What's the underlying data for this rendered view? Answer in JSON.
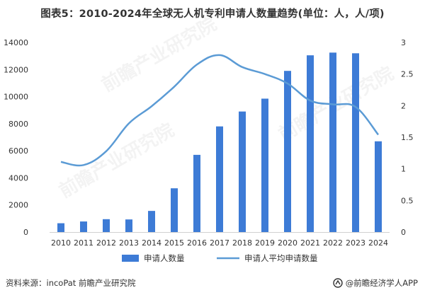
{
  "title": "图表5：2010-2024年全球无人机专利申请人数量趋势(单位：人，人/项)",
  "source": "资料来源：incoPat 前瞻产业研究院",
  "credit": "@前瞻经济学人APP",
  "watermark": "前瞻产业研究院",
  "colors": {
    "bar": "#3d7bd6",
    "line": "#5b9bd5"
  },
  "chart_data": {
    "type": "bar",
    "categories": [
      "2010",
      "2011",
      "2012",
      "2013",
      "2014",
      "2015",
      "2016",
      "2017",
      "2018",
      "2019",
      "2020",
      "2021",
      "2022",
      "2023",
      "2024"
    ],
    "series": [
      {
        "name": "申请人数量",
        "type": "bar",
        "axis": "left",
        "values": [
          650,
          780,
          950,
          930,
          1560,
          3230,
          5700,
          7800,
          8900,
          9850,
          11900,
          13050,
          13250,
          13200,
          6700
        ]
      },
      {
        "name": "申请人平均申请数量",
        "type": "line",
        "axis": "right",
        "values": [
          1.11,
          1.06,
          1.28,
          1.72,
          1.99,
          2.3,
          2.65,
          2.8,
          2.61,
          2.5,
          2.35,
          2.08,
          2.02,
          1.98,
          1.54
        ]
      }
    ],
    "y_left": {
      "min": 0,
      "max": 14000,
      "ticks": [
        "0",
        "2000",
        "4000",
        "6000",
        "8000",
        "10000",
        "12000",
        "14000"
      ]
    },
    "y_right": {
      "min": 0,
      "max": 3,
      "ticks": [
        "0",
        "0.5",
        "1",
        "1.5",
        "2",
        "2.5",
        "3"
      ]
    },
    "grid": false,
    "legend_position": "bottom"
  }
}
